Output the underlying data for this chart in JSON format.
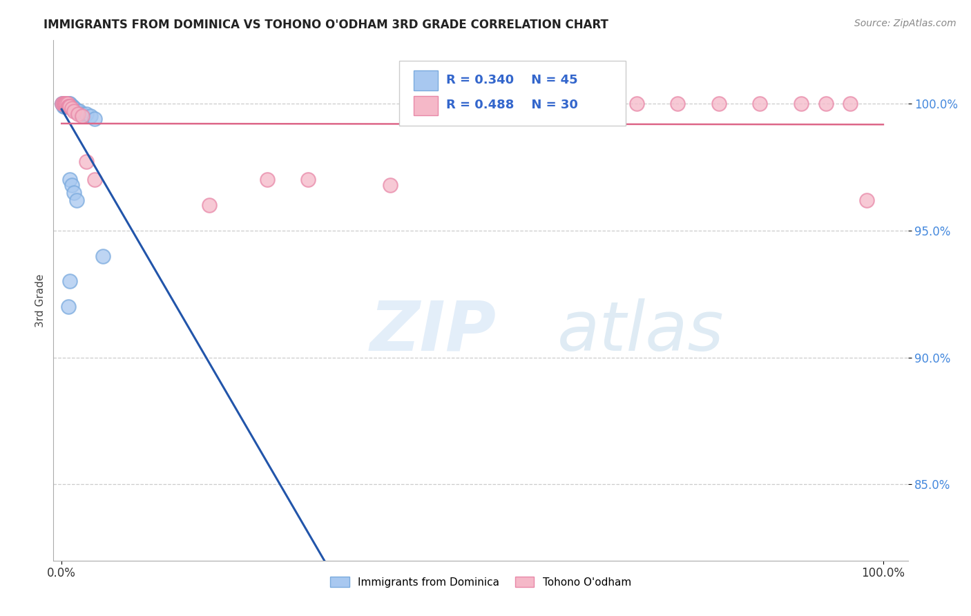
{
  "title": "IMMIGRANTS FROM DOMINICA VS TOHONO O'ODHAM 3RD GRADE CORRELATION CHART",
  "source": "Source: ZipAtlas.com",
  "ylabel": "3rd Grade",
  "blue_label": "Immigrants from Dominica",
  "pink_label": "Tohono O'odham",
  "blue_R": 0.34,
  "blue_N": 45,
  "pink_R": 0.488,
  "pink_N": 30,
  "blue_color": "#a8c8f0",
  "blue_edge_color": "#7aaade",
  "pink_color": "#f5b8c8",
  "pink_edge_color": "#e888a8",
  "blue_line_color": "#2255aa",
  "pink_line_color": "#dd6688",
  "watermark_zip": "ZIP",
  "watermark_atlas": "atlas",
  "xlim": [
    0.0,
    1.0
  ],
  "ylim": [
    0.82,
    1.025
  ],
  "ytick_vals": [
    0.85,
    0.9,
    0.95,
    1.0
  ],
  "ytick_labels": [
    "85.0%",
    "90.0%",
    "95.0%",
    "100.0%"
  ],
  "xtick_vals": [
    0.0,
    1.0
  ],
  "xtick_labels": [
    "0.0%",
    "100.0%"
  ],
  "blue_x": [
    0.001,
    0.001,
    0.002,
    0.002,
    0.002,
    0.003,
    0.003,
    0.003,
    0.004,
    0.004,
    0.004,
    0.005,
    0.005,
    0.005,
    0.006,
    0.006,
    0.006,
    0.007,
    0.007,
    0.008,
    0.008,
    0.008,
    0.009,
    0.009,
    0.01,
    0.01,
    0.011,
    0.012,
    0.013,
    0.015,
    0.016,
    0.018,
    0.02,
    0.022,
    0.025,
    0.03,
    0.035,
    0.04,
    0.05,
    0.01,
    0.012,
    0.015,
    0.018,
    0.01,
    0.008
  ],
  "blue_y": [
    1.0,
    1.0,
    1.0,
    1.0,
    0.999,
    1.0,
    1.0,
    0.999,
    1.0,
    1.0,
    0.999,
    1.0,
    1.0,
    0.999,
    1.0,
    1.0,
    0.999,
    1.0,
    0.999,
    1.0,
    0.999,
    0.999,
    1.0,
    0.999,
    1.0,
    0.999,
    0.999,
    0.999,
    0.999,
    0.998,
    0.998,
    0.997,
    0.997,
    0.997,
    0.996,
    0.996,
    0.995,
    0.994,
    0.94,
    0.97,
    0.968,
    0.965,
    0.962,
    0.93,
    0.92
  ],
  "pink_x": [
    0.001,
    0.002,
    0.003,
    0.004,
    0.005,
    0.006,
    0.007,
    0.008,
    0.009,
    0.01,
    0.012,
    0.015,
    0.02,
    0.025,
    0.03,
    0.04,
    0.18,
    0.25,
    0.3,
    0.4,
    0.5,
    0.6,
    0.7,
    0.75,
    0.8,
    0.85,
    0.9,
    0.93,
    0.96,
    0.98
  ],
  "pink_y": [
    1.0,
    1.0,
    1.0,
    1.0,
    1.0,
    1.0,
    1.0,
    0.999,
    0.999,
    0.999,
    0.998,
    0.997,
    0.996,
    0.995,
    0.977,
    0.97,
    0.96,
    0.97,
    0.97,
    0.968,
    1.0,
    1.0,
    1.0,
    1.0,
    1.0,
    1.0,
    1.0,
    1.0,
    1.0,
    0.962
  ]
}
